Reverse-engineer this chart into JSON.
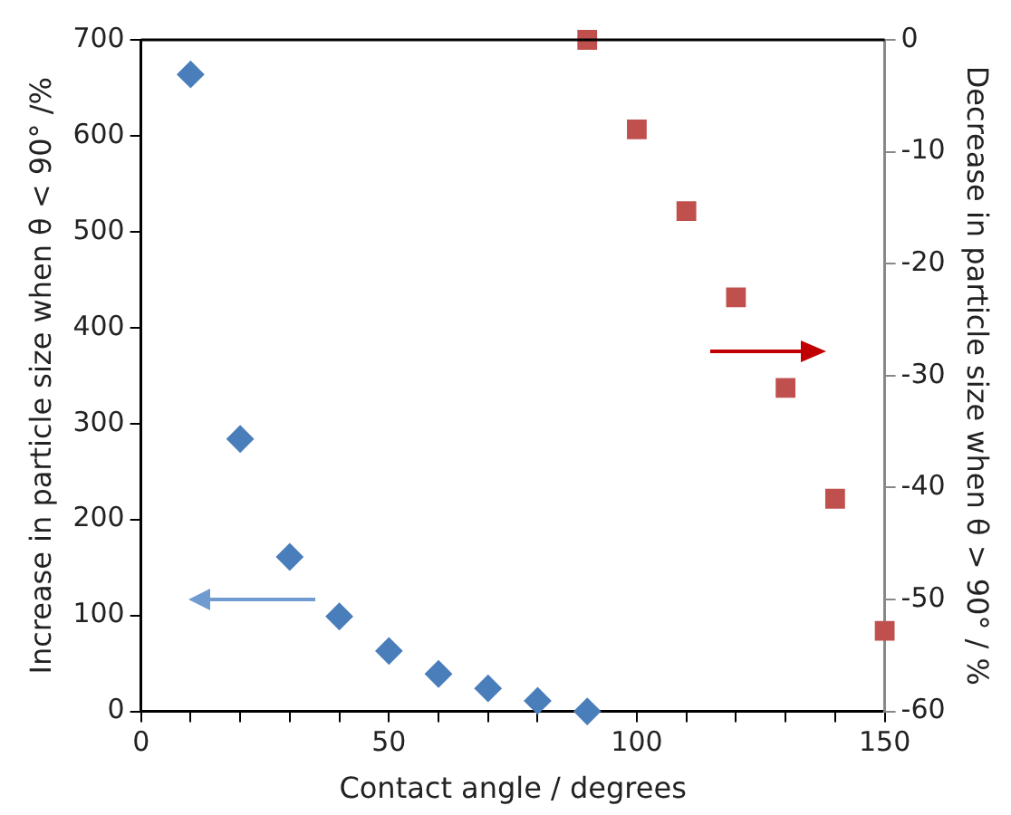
{
  "chart_data": {
    "type": "scatter",
    "xlabel": "Contact angle / degrees",
    "ylabel": "Increase in particle size when θ < 90° /%",
    "y2label": "Decrease in particle size when θ > 90° / %",
    "series": [
      {
        "color": "#4a7ebb",
        "marker": "diamond",
        "x": [
          10,
          20,
          30,
          40,
          50,
          60,
          70,
          80,
          90
        ],
        "values": [
          664,
          284,
          161,
          99,
          63,
          39,
          24,
          11,
          0
        ]
      },
      {
        "color": "#c0504d",
        "marker": "square",
        "axis": "y2",
        "x": [
          90,
          100,
          110,
          120,
          130,
          140,
          150
        ],
        "values": [
          0,
          -8,
          -15.3,
          -23,
          -31.1,
          -41,
          -52.8
        ]
      }
    ],
    "xlim": [
      0,
      150
    ],
    "xticks": [
      0,
      {
        "value": 10,
        "label": null
      },
      {
        "value": 20,
        "label": null
      },
      {
        "value": 30,
        "label": null
      },
      {
        "value": 40,
        "label": null
      },
      50,
      {
        "value": 60,
        "label": null
      },
      {
        "value": 70,
        "label": null
      },
      {
        "value": 80,
        "label": null
      },
      {
        "value": 90,
        "label": null
      },
      100,
      {
        "value": 110,
        "label": null
      },
      {
        "value": 120,
        "label": null
      },
      {
        "value": 130,
        "label": null
      },
      {
        "value": 140,
        "label": null
      },
      150
    ],
    "ylim": [
      0,
      700
    ],
    "yticks": [
      0,
      100,
      200,
      300,
      400,
      500,
      600,
      700
    ],
    "y2lim": [
      -60,
      0
    ],
    "y2ticks": [
      -60,
      -50,
      -40,
      -30,
      -20,
      -10,
      0
    ],
    "grid": false,
    "legend": false
  }
}
